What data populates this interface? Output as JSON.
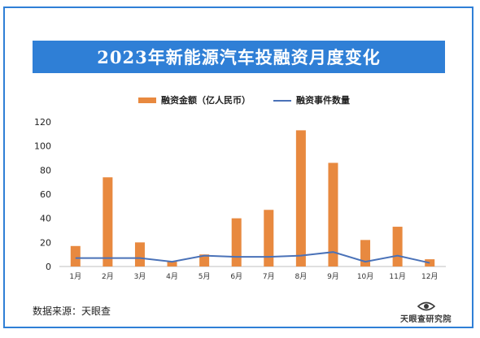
{
  "title": "2023年新能源汽车投融资月度变化",
  "source": "数据来源：天眼查",
  "logo": {
    "name": "天眼查研究院",
    "icon": "eye-logo-icon"
  },
  "colors": {
    "accent": "#2f7fd6",
    "bar": "#e8893f",
    "line": "#4a72b8"
  },
  "chart_data": {
    "type": "bar",
    "categories": [
      "1月",
      "2月",
      "3月",
      "4月",
      "5月",
      "6月",
      "7月",
      "8月",
      "9月",
      "10月",
      "11月",
      "12月"
    ],
    "ylim": [
      0,
      120
    ],
    "yticks": [
      0,
      20,
      40,
      60,
      80,
      100,
      120
    ],
    "grid": false,
    "legend": "top-center",
    "series": [
      {
        "name": "融资金额（亿人民币）",
        "type": "bar",
        "values": [
          17,
          74,
          20,
          4,
          10,
          40,
          47,
          113,
          86,
          22,
          33,
          6
        ]
      },
      {
        "name": "融资事件数量",
        "type": "line",
        "values": [
          7,
          7,
          7,
          4,
          9,
          8,
          8,
          9,
          12,
          4,
          9,
          3
        ]
      }
    ]
  }
}
